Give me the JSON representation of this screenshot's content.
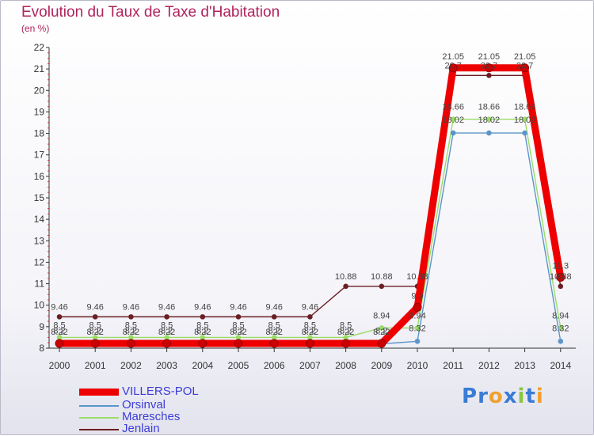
{
  "colors": {
    "title": "#b0245c",
    "legend_text": "#3d3dd9",
    "axis": "#333333",
    "grid_tick": "#cc3333"
  },
  "logo": {
    "text": "Proxiti",
    "letters": [
      "P",
      "r",
      "o",
      "x",
      "i",
      "t",
      "i"
    ],
    "letter_colors": [
      "#3a7bd5",
      "#3a7bd5",
      "#f0a030",
      "#3a7bd5",
      "#8cc63f",
      "#3a7bd5",
      "#f0a030"
    ]
  },
  "chart_data": {
    "type": "line",
    "title": "Evolution du Taux de Taxe d'Habitation",
    "ylabel": "(en %)",
    "xlabel": "",
    "x": [
      "2000",
      "2001",
      "2002",
      "2003",
      "2004",
      "2005",
      "2006",
      "2007",
      "2008",
      "2009",
      "2010",
      "2011",
      "2012",
      "2013",
      "2014"
    ],
    "ylim": [
      8,
      22
    ],
    "yticks": [
      "8",
      "9",
      "10",
      "11",
      "12",
      "13",
      "14",
      "15",
      "16",
      "17",
      "18",
      "19",
      "20",
      "21",
      "22"
    ],
    "grid": false,
    "legend_position": "bottom-left",
    "series": [
      {
        "name": "VILLERS-POL",
        "color": "#ee0000",
        "values": [
          8.22,
          8.22,
          8.22,
          8.22,
          8.22,
          8.22,
          8.22,
          8.22,
          8.22,
          8.22,
          9.9,
          21.05,
          21.05,
          21.05,
          11.3
        ],
        "labels": [
          "8.22",
          "8.22",
          "8.22",
          "8.22",
          "8.22",
          "8.22",
          "8.22",
          "8.22",
          "8.22",
          "8.22",
          "9.9",
          "21.05",
          "21.05",
          "21.05",
          "11.3"
        ]
      },
      {
        "name": "Orsinval",
        "color": "#5b95c9",
        "values": [
          8.2,
          8.2,
          8.2,
          8.2,
          8.2,
          8.2,
          8.2,
          8.2,
          8.2,
          8.2,
          8.32,
          18.02,
          18.02,
          18.02,
          8.32
        ],
        "labels": [
          "8.2",
          "8.2",
          "8.2",
          "8.2",
          "8.2",
          "8.2",
          "8.2",
          "8.2",
          "8.2",
          "8.2",
          "8.32",
          "18.02",
          "18.02",
          "18.02",
          "8.32"
        ]
      },
      {
        "name": "Maresches",
        "color": "#99dd66",
        "values": [
          8.5,
          8.5,
          8.5,
          8.5,
          8.5,
          8.5,
          8.5,
          8.5,
          8.5,
          8.94,
          8.94,
          18.66,
          18.66,
          18.66,
          8.94
        ],
        "labels": [
          "8.5",
          "8.5",
          "8.5",
          "8.5",
          "8.5",
          "8.5",
          "8.5",
          "8.5",
          "8.5",
          "8.94",
          "8.94",
          "18.66",
          "18.66",
          "18.66",
          "8.94"
        ]
      },
      {
        "name": "Jenlain",
        "color": "#6b1f24",
        "values": [
          9.46,
          9.46,
          9.46,
          9.46,
          9.46,
          9.46,
          9.46,
          9.46,
          10.88,
          10.88,
          10.88,
          20.7,
          20.7,
          20.7,
          10.88
        ],
        "labels": [
          "9.46",
          "9.46",
          "9.46",
          "9.46",
          "9.46",
          "9.46",
          "9.46",
          "9.46",
          "10.88",
          "10.88",
          "10.88",
          "20.7",
          "20.7",
          "20.7",
          "10.88"
        ]
      }
    ]
  },
  "legend": {
    "items": [
      {
        "label": "VILLERS-POL"
      },
      {
        "label": "Orsinval"
      },
      {
        "label": "Maresches"
      },
      {
        "label": "Jenlain"
      }
    ]
  }
}
